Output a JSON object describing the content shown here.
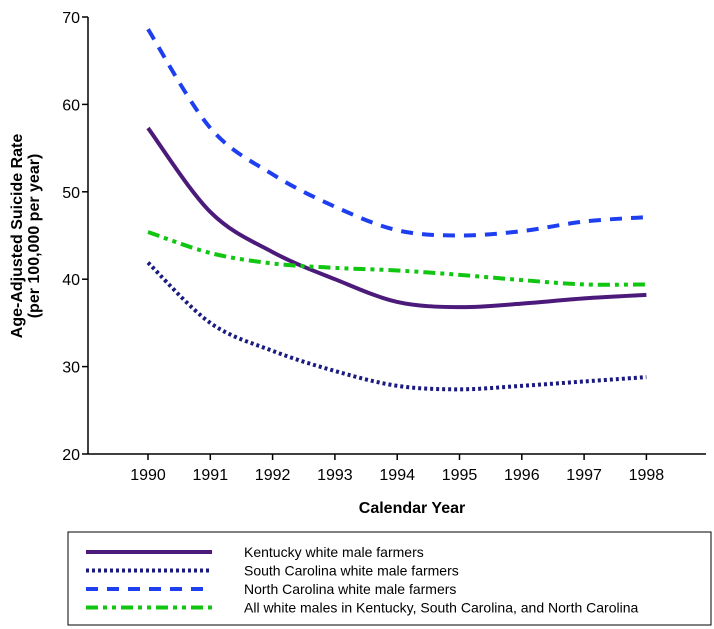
{
  "chart_data": {
    "type": "line",
    "title": "",
    "xlabel": "Calendar Year",
    "ylabel": "Age-Adjusted Suicide Rate",
    "ylabel_sub": "(per 100,000 per year)",
    "x": [
      1990,
      1991,
      1992,
      1993,
      1994,
      1995,
      1996,
      1997,
      1998
    ],
    "x_tick_labels": [
      "1990",
      "1991",
      "1992",
      "1993",
      "1994",
      "1995",
      "1996",
      "1997",
      "1998"
    ],
    "ylim": [
      20,
      70
    ],
    "y_ticks": [
      20,
      30,
      40,
      50,
      60,
      70
    ],
    "y_tick_labels": [
      "20",
      "30",
      "40",
      "50",
      "60",
      "70"
    ],
    "grid": false,
    "legend_position": "bottom",
    "series": [
      {
        "name": "Kentucky white male farmers",
        "color": "#4b1a7a",
        "style": "solid",
        "values": [
          57.3,
          47.7,
          43.1,
          40.0,
          37.4,
          36.8,
          37.2,
          37.8,
          38.2
        ]
      },
      {
        "name": "South Carolina white male farmers",
        "color": "#1a1a80",
        "style": "dotted",
        "values": [
          41.9,
          35.0,
          31.8,
          29.5,
          27.8,
          27.4,
          27.8,
          28.3,
          28.8
        ]
      },
      {
        "name": "North Carolina white male farmers",
        "color": "#1e3ff0",
        "style": "dashed",
        "values": [
          68.6,
          57.3,
          52.0,
          48.3,
          45.6,
          45.0,
          45.5,
          46.6,
          47.1
        ]
      },
      {
        "name": "All white males in Kentucky, South Carolina, and North Carolina",
        "color": "#11c611",
        "style": "dashdotdot",
        "values": [
          45.4,
          43.0,
          41.8,
          41.3,
          41.0,
          40.5,
          39.9,
          39.4,
          39.4
        ]
      }
    ]
  }
}
